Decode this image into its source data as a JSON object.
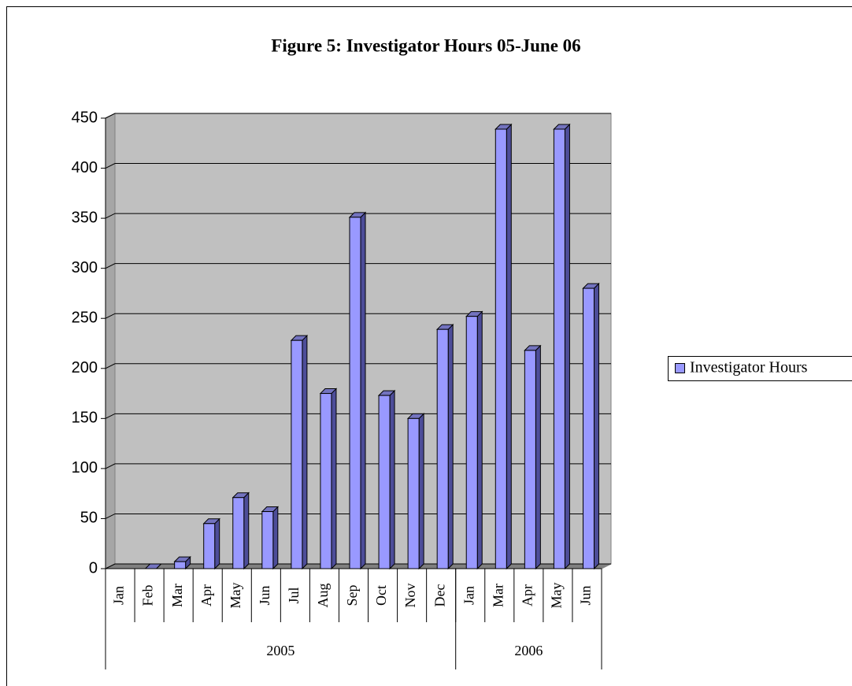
{
  "chart_data": {
    "type": "bar3d",
    "title": "Figure 5: Investigator Hours 05-June 06",
    "categories": [
      "Jan",
      "Feb",
      "Mar",
      "Apr",
      "May",
      "Jun",
      "Jul",
      "Aug",
      "Sep",
      "Oct",
      "Nov",
      "Dec",
      "Jan",
      "Mar",
      "Apr",
      "May",
      "Jun"
    ],
    "groups": [
      {
        "label": "2005",
        "span": 12
      },
      {
        "label": "2006",
        "span": 5
      }
    ],
    "series": [
      {
        "name": "Investigator Hours",
        "color": "#9999ff",
        "values": [
          null,
          0,
          7,
          45,
          71,
          57,
          228,
          175,
          351,
          173,
          150,
          239,
          252,
          439,
          218,
          439,
          280
        ]
      }
    ],
    "ylim": [
      0,
      450
    ],
    "yticks": [
      0,
      50,
      100,
      150,
      200,
      250,
      300,
      350,
      400,
      450
    ],
    "grid": true,
    "legend": "right"
  }
}
